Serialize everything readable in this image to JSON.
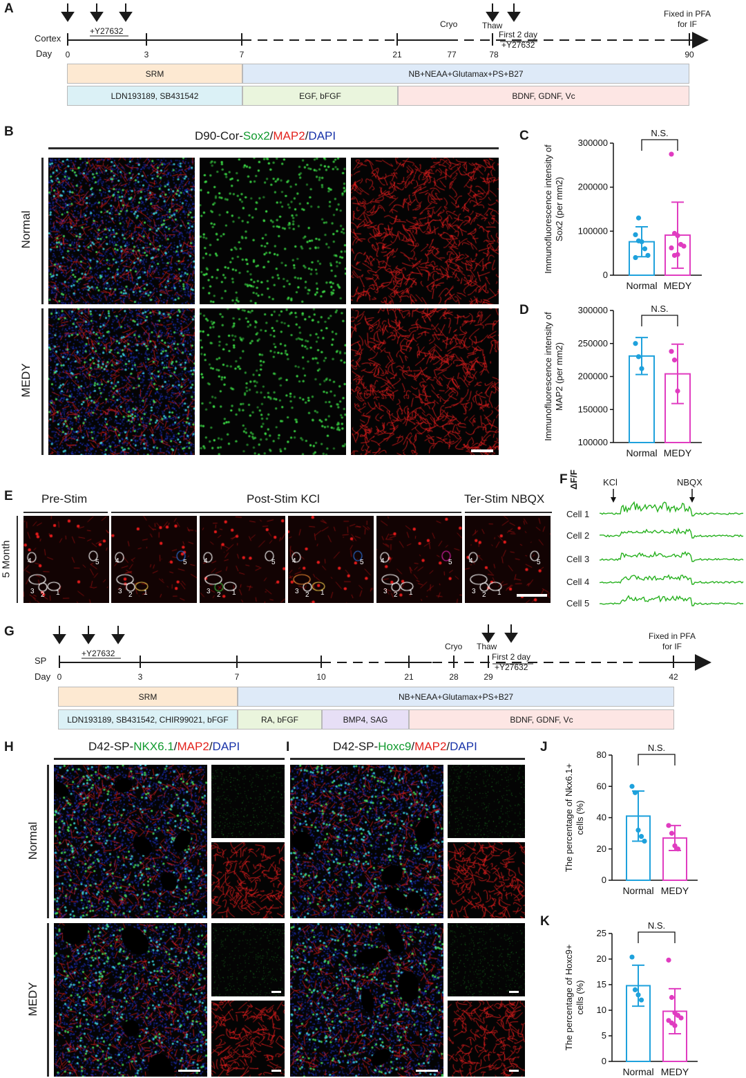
{
  "panel_letters": {
    "A": "A",
    "B": "B",
    "C": "C",
    "D": "D",
    "E": "E",
    "F": "F",
    "G": "G",
    "H": "H",
    "I": "I",
    "J": "J",
    "K": "K"
  },
  "timeline_cortex": {
    "row_label": "Cortex",
    "day_label": "Day",
    "ticks": [
      "0",
      "3",
      "7",
      "21",
      "77",
      "78",
      "90"
    ],
    "y27632_label": "+Y27632",
    "cryo": "Cryo",
    "thaw": "Thaw",
    "first2day": "First 2 day",
    "y27632_after": "+Y27632",
    "fixed": "Fixed in PFA",
    "for_if": "for IF",
    "media": [
      "SRM",
      "NB+NEAA+Glutamax+PS+B27"
    ],
    "factors": [
      "LDN193189, SB431542",
      "EGF, bFGF",
      "BDNF, GDNF, Vc"
    ]
  },
  "panel_b": {
    "title_prefix": "D90-Cor-",
    "sox2": "Sox2",
    "slash1": "/",
    "map2": "MAP2",
    "slash2": "/",
    "dapi": "DAPI",
    "row1": "Normal",
    "row2": "MEDY"
  },
  "panel_e": {
    "pre": "Pre-Stim",
    "post": "Post-Stim KCl",
    "ter": "Ter-Stim NBQX",
    "row": "5 Month",
    "cell_numbers": [
      "1",
      "2",
      "3",
      "4",
      "5"
    ]
  },
  "panel_f": {
    "dff": "ΔF/F",
    "kcl": "KCl",
    "nbqx": "NBQX",
    "cells": [
      "Cell 1",
      "Cell 2",
      "Cell 3",
      "Cell 4",
      "Cell 5"
    ]
  },
  "timeline_sp": {
    "row_label": "SP",
    "day_label": "Day",
    "ticks": [
      "0",
      "3",
      "7",
      "10",
      "21",
      "28",
      "29",
      "42"
    ],
    "y27632_label": "+Y27632",
    "cryo": "Cryo",
    "thaw": "Thaw",
    "first2day": "First 2 day",
    "y27632_after": "+Y27632",
    "fixed": "Fixed in PFA",
    "for_if": "for IF",
    "media": [
      "SRM",
      "NB+NEAA+Glutamax+PS+B27"
    ],
    "factors": [
      "LDN193189, SB431542, CHIR99021, bFGF",
      "RA, bFGF",
      "BMP4, SAG",
      "BDNF, GDNF, Vc"
    ]
  },
  "panel_h": {
    "title_prefix": "D42-SP-",
    "green": "NKX6.1",
    "slash1": "/",
    "map2": "MAP2",
    "slash2": "/",
    "dapi": "DAPI",
    "row1": "Normal",
    "row2": "MEDY"
  },
  "panel_i": {
    "title_prefix": "D42-SP-",
    "green": "Hoxc9",
    "slash1": "/",
    "map2": "MAP2",
    "slash2": "/",
    "dapi": "DAPI"
  },
  "colors": {
    "normal": "#1ea1dc",
    "medy": "#e03cc0",
    "trace": "#27b11f"
  },
  "chart_data": [
    {
      "id": "C",
      "type": "bar",
      "categories": [
        "Normal",
        "MEDY"
      ],
      "values": [
        76000,
        91000
      ],
      "sd": [
        34000,
        75000
      ],
      "points": [
        [
          92000,
          78000,
          76000,
          60000,
          45000,
          40000,
          130000
        ],
        [
          275000,
          95000,
          90000,
          70000,
          66000,
          62000,
          45000,
          47000
        ]
      ],
      "ylabel_lines": [
        "Immunofluorescence intensity of",
        "Sox2 (per mm2)"
      ],
      "ylim": [
        0,
        300000
      ],
      "ticks": [
        "0",
        "100000",
        "200000",
        "300000"
      ],
      "tick_values": [
        0,
        100000,
        200000,
        300000
      ],
      "significance": "N.S."
    },
    {
      "id": "D",
      "type": "bar",
      "categories": [
        "Normal",
        "MEDY"
      ],
      "values": [
        231000,
        204000
      ],
      "sd": [
        28000,
        45000
      ],
      "points": [
        [
          250000,
          230000,
          212000
        ],
        [
          238000,
          225000,
          178000
        ]
      ],
      "ylabel_lines": [
        "Immunofluorescence intensity of",
        "MAP2  (per mm2)"
      ],
      "ylim": [
        100000,
        300000
      ],
      "ticks": [
        "100000",
        "150000",
        "200000",
        "250000",
        "300000"
      ],
      "tick_values": [
        100000,
        150000,
        200000,
        250000,
        300000
      ],
      "significance": "N.S."
    },
    {
      "id": "J",
      "type": "bar",
      "categories": [
        "Normal",
        "MEDY"
      ],
      "values": [
        41,
        27
      ],
      "sd": [
        16,
        8
      ],
      "points": [
        [
          60,
          56,
          32,
          28,
          25
        ],
        [
          35,
          30,
          22,
          20
        ]
      ],
      "ylabel_lines": [
        "The percentage of Nkx6.1+",
        "cells (%)"
      ],
      "ylim": [
        0,
        80
      ],
      "ticks": [
        "0",
        "20",
        "40",
        "60",
        "80"
      ],
      "tick_values": [
        0,
        20,
        40,
        60,
        80
      ],
      "significance": "N.S."
    },
    {
      "id": "K",
      "type": "bar",
      "categories": [
        "Normal",
        "MEDY"
      ],
      "values": [
        14.8,
        9.8
      ],
      "sd": [
        4,
        4.4
      ],
      "points": [
        [
          20.4,
          14,
          13,
          12
        ],
        [
          19.8,
          12.5,
          9.5,
          9,
          8.5,
          8,
          7.5,
          7
        ]
      ],
      "ylabel_lines": [
        "The percentage of Hoxc9+",
        "cells (%)"
      ],
      "ylim": [
        0,
        25
      ],
      "ticks": [
        "0",
        "5",
        "10",
        "15",
        "20",
        "25"
      ],
      "tick_values": [
        0,
        5,
        10,
        15,
        20,
        25
      ],
      "significance": "N.S."
    }
  ]
}
